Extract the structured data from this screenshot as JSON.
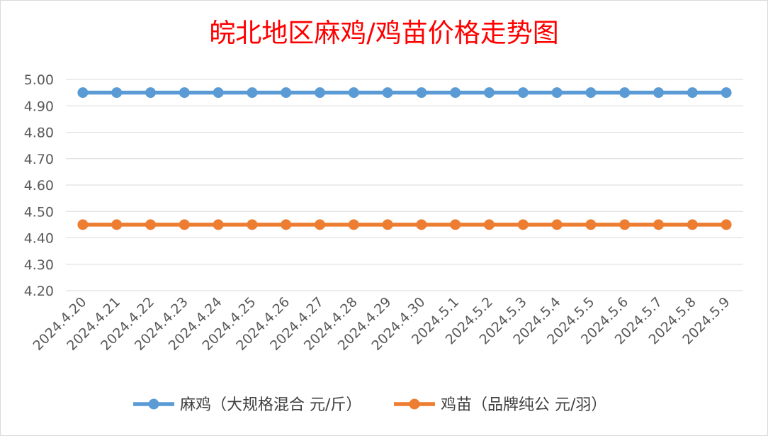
{
  "chart_data": {
    "type": "line",
    "title": "皖北地区麻鸡/鸡苗价格走势图",
    "categories": [
      "2024.4.20",
      "2024.4.21",
      "2024.4.22",
      "2024.4.23",
      "2024.4.24",
      "2024.4.25",
      "2024.4.26",
      "2024.4.27",
      "2024.4.28",
      "2024.4.29",
      "2024.4.30",
      "2024.5.1",
      "2024.5.2",
      "2024.5.3",
      "2024.5.4",
      "2024.5.5",
      "2024.5.6",
      "2024.5.7",
      "2024.5.8",
      "2024.5.9"
    ],
    "ylim": [
      4.2,
      5.0
    ],
    "yticks": [
      "4.20",
      "4.30",
      "4.40",
      "4.50",
      "4.60",
      "4.70",
      "4.80",
      "4.90",
      "5.00"
    ],
    "grid": true,
    "legend_position": "bottom",
    "series": [
      {
        "name": "麻鸡（大规格混合 元/斤）",
        "color": "#5b9bd5",
        "values": [
          4.95,
          4.95,
          4.95,
          4.95,
          4.95,
          4.95,
          4.95,
          4.95,
          4.95,
          4.95,
          4.95,
          4.95,
          4.95,
          4.95,
          4.95,
          4.95,
          4.95,
          4.95,
          4.95,
          4.95
        ]
      },
      {
        "name": "鸡苗（品牌纯公 元/羽）",
        "color": "#ed7d31",
        "values": [
          4.45,
          4.45,
          4.45,
          4.45,
          4.45,
          4.45,
          4.45,
          4.45,
          4.45,
          4.45,
          4.45,
          4.45,
          4.45,
          4.45,
          4.45,
          4.45,
          4.45,
          4.45,
          4.45,
          4.45
        ]
      }
    ]
  }
}
